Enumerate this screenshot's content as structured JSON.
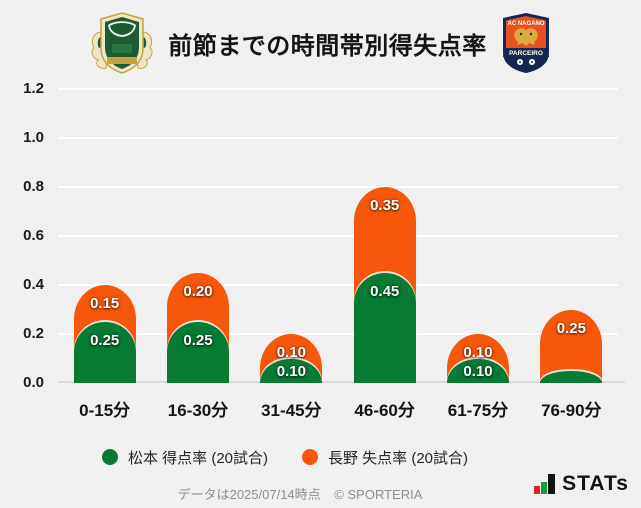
{
  "header": {
    "title": "前節までの時間帯別得失点率"
  },
  "logos": {
    "nagano": {
      "top_text": "AC NAGANO",
      "banner_text": "PARCEIRO"
    }
  },
  "chart_data": {
    "type": "bar",
    "stacked": true,
    "title": "前節までの時間帯別得失点率",
    "categories": [
      "0-15分",
      "16-30分",
      "31-45分",
      "46-60分",
      "61-75分",
      "76-90分"
    ],
    "series": [
      {
        "name": "松本 得点率 (20試合)",
        "color": "#077a33",
        "values": [
          0.25,
          0.25,
          0.1,
          0.45,
          0.1,
          0.05
        ],
        "labels": [
          "0.25",
          "0.25",
          "0.10",
          "0.45",
          "0.10",
          ""
        ]
      },
      {
        "name": "長野 失点率 (20試合)",
        "color": "#f6570a",
        "values": [
          0.15,
          0.2,
          0.1,
          0.35,
          0.1,
          0.25
        ],
        "labels": [
          "0.15",
          "0.20",
          "0.10",
          "0.35",
          "0.10",
          "0.25"
        ]
      }
    ],
    "ylim": [
      0,
      1.2
    ],
    "yticks": [
      "0.0",
      "0.2",
      "0.4",
      "0.6",
      "0.8",
      "1.0",
      "1.2"
    ],
    "grid": true,
    "legend_position": "bottom",
    "background": "#f0f0f0",
    "gridline_color": "#ffffff",
    "axis_line_color": "#d9d9d9"
  },
  "footer": {
    "note": "データは2025/07/14時点",
    "copyright": "© SPORTERIA",
    "brand": "STATs"
  }
}
